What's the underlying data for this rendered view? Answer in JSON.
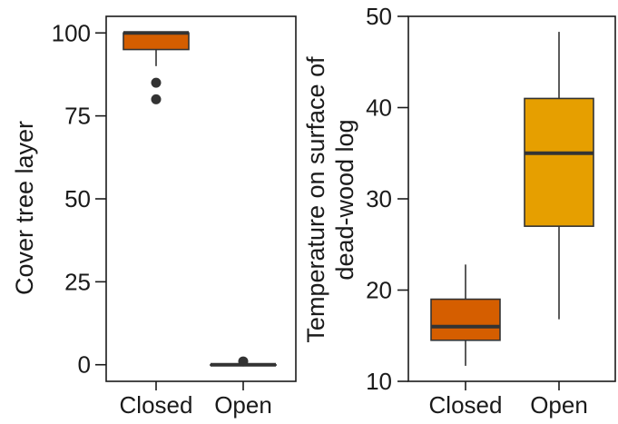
{
  "chart_data": [
    {
      "type": "box",
      "ylabel": "Cover tree layer",
      "xlabel": "",
      "categories": [
        "Closed",
        "Open"
      ],
      "ylim": [
        -5,
        105
      ],
      "yticks": [
        0,
        25,
        50,
        75,
        100
      ],
      "grid": false,
      "boxes": [
        {
          "name": "Closed",
          "q1": 95,
          "median": 100,
          "q3": 100,
          "whisker_low": 90,
          "whisker_high": 100,
          "outliers": [
            85,
            80
          ],
          "color": "#D55E00"
        },
        {
          "name": "Open",
          "q1": 0,
          "median": 0,
          "q3": 0,
          "whisker_low": 0,
          "whisker_high": 0,
          "outliers": [
            1
          ],
          "color": "#D55E00"
        }
      ]
    },
    {
      "type": "box",
      "ylabel_lines": [
        "Temperature on surface of",
        "dead-wood log"
      ],
      "xlabel": "",
      "categories": [
        "Closed",
        "Open"
      ],
      "ylim": [
        10,
        50
      ],
      "yticks": [
        10,
        20,
        30,
        40,
        50
      ],
      "grid": false,
      "boxes": [
        {
          "name": "Closed",
          "q1": 14.5,
          "median": 16,
          "q3": 19,
          "whisker_low": 11.7,
          "whisker_high": 22.8,
          "outliers": [],
          "color": "#D55E00"
        },
        {
          "name": "Open",
          "q1": 27,
          "median": 35,
          "q3": 41,
          "whisker_low": 16.8,
          "whisker_high": 48.3,
          "outliers": [],
          "color": "#E69F00"
        }
      ]
    }
  ]
}
